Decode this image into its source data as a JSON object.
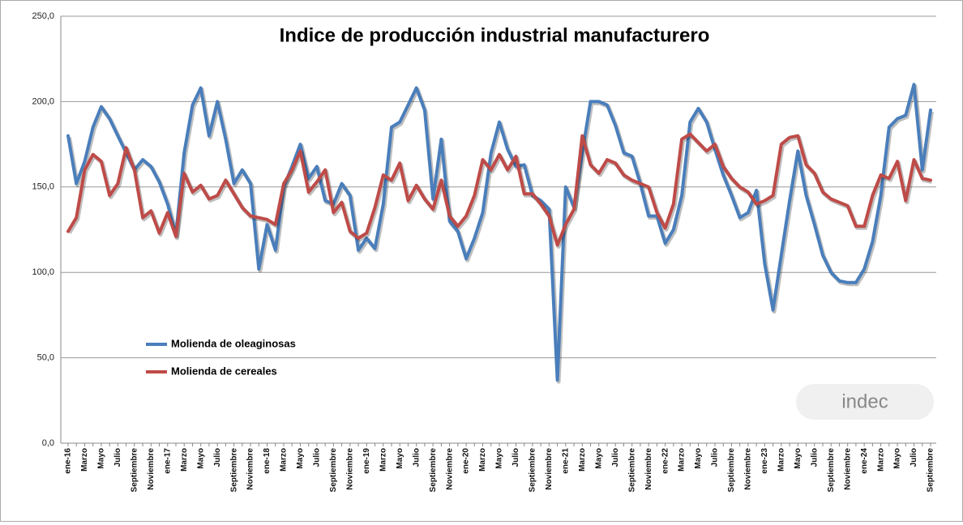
{
  "chart_data": {
    "type": "line",
    "title": "Indice de producción industrial manufacturero",
    "logo": "indec",
    "categories": [
      "ene-16",
      null,
      "Marzo",
      null,
      "Mayo",
      null,
      "Julio",
      null,
      "Septiembre",
      null,
      "Noviembre",
      null,
      "ene-17",
      null,
      "Marzo",
      null,
      "Mayo",
      null,
      "Julio",
      null,
      "Septiembre",
      null,
      "Noviembre",
      null,
      "ene-18",
      null,
      "Marzo",
      null,
      "Mayo",
      null,
      "Julio",
      null,
      "Septiembre",
      null,
      "Noviembre",
      null,
      "ene-19",
      null,
      "Marzo",
      null,
      "Mayo",
      null,
      "Julio",
      null,
      "Septiembre",
      null,
      "Noviembre",
      null,
      "ene-20",
      null,
      "Marzo",
      null,
      "Mayo",
      null,
      "Julio",
      null,
      "Septiembre",
      null,
      "Noviembre",
      null,
      "ene-21",
      null,
      "Marzo",
      null,
      "Mayo",
      null,
      "Julio",
      null,
      "Septiembre",
      null,
      "Noviembre",
      null,
      "ene-22",
      null,
      "Marzo",
      null,
      "Mayo",
      null,
      "Julio",
      null,
      "Septiembre",
      null,
      "Noviembre",
      null,
      "ene-23",
      null,
      "Marzo",
      null,
      "Mayo",
      null,
      "Julio",
      null,
      "Septiembre",
      null,
      "Noviembre",
      null,
      "ene-24",
      null,
      "Marzo",
      null,
      "Mayo",
      null,
      "Julio",
      null,
      "Septiembre"
    ],
    "series": [
      {
        "name": "Molienda de oleaginosas",
        "color": "#4a7ebb",
        "values": [
          180,
          152,
          165,
          185,
          197,
          190,
          180,
          170,
          160,
          166,
          162,
          153,
          140,
          122,
          170,
          198,
          208,
          180,
          200,
          178,
          152,
          160,
          152,
          102,
          128,
          113,
          150,
          162,
          175,
          155,
          162,
          142,
          140,
          152,
          145,
          113,
          120,
          114,
          140,
          185,
          188,
          198,
          208,
          195,
          143,
          178,
          130,
          124,
          108,
          120,
          135,
          170,
          188,
          172,
          162,
          163,
          145,
          142,
          137,
          37,
          150,
          138,
          170,
          200,
          200,
          198,
          186,
          170,
          168,
          152,
          133,
          133,
          117,
          125,
          145,
          188,
          196,
          188,
          172,
          157,
          145,
          132,
          135,
          148,
          105,
          78,
          110,
          142,
          171,
          145,
          128,
          110,
          100,
          95,
          94,
          94,
          102,
          118,
          145,
          185,
          190,
          192,
          210,
          160,
          195
        ]
      },
      {
        "name": "Molienda de cereales",
        "color": "#be4b48",
        "values": [
          124,
          132,
          160,
          169,
          165,
          145,
          152,
          173,
          160,
          132,
          136,
          123,
          135,
          121,
          158,
          147,
          151,
          143,
          145,
          154,
          146,
          138,
          133,
          132,
          131,
          128,
          152,
          160,
          171,
          147,
          153,
          160,
          135,
          141,
          124,
          120,
          123,
          138,
          157,
          154,
          164,
          142,
          151,
          143,
          137,
          154,
          133,
          127,
          133,
          145,
          166,
          160,
          169,
          160,
          168,
          146,
          146,
          140,
          133,
          116,
          128,
          137,
          180,
          163,
          158,
          166,
          164,
          157,
          154,
          152,
          150,
          135,
          126,
          140,
          178,
          181,
          176,
          171,
          175,
          162,
          155,
          150,
          147,
          140,
          142,
          145,
          175,
          179,
          180,
          163,
          158,
          147,
          143,
          141,
          139,
          127,
          127,
          145,
          157,
          155,
          165,
          142,
          166,
          155,
          154
        ]
      }
    ],
    "ylim": [
      0,
      250
    ],
    "yticks": [
      {
        "value": 0,
        "label": "0,0"
      },
      {
        "value": 50,
        "label": "50,0"
      },
      {
        "value": 100,
        "label": "100,0"
      },
      {
        "value": 150,
        "label": "150,0"
      },
      {
        "value": 200,
        "label": "200,0"
      },
      {
        "value": 250,
        "label": "250,0"
      }
    ],
    "grid": true,
    "legend": "left"
  }
}
